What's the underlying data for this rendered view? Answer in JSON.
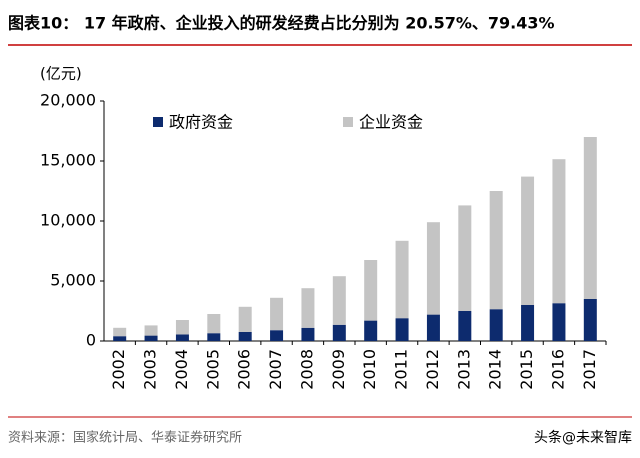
{
  "chart_data": {
    "type": "stacked_bar",
    "title": "图表10：   17 年政府、企业投入的研发经费占比分别为 20.57%、79.43%",
    "y_label": "(亿元)",
    "categories": [
      "2002",
      "2003",
      "2004",
      "2005",
      "2006",
      "2007",
      "2008",
      "2009",
      "2010",
      "2011",
      "2012",
      "2013",
      "2014",
      "2015",
      "2016",
      "2017"
    ],
    "series": [
      {
        "name": "政府资金",
        "color": "#0d2b6e",
        "values": [
          400,
          450,
          550,
          650,
          750,
          900,
          1100,
          1350,
          1700,
          1900,
          2200,
          2500,
          2650,
          3000,
          3150,
          3500
        ]
      },
      {
        "name": "企业资金",
        "color": "#c4c4c4",
        "values": [
          700,
          850,
          1200,
          1600,
          2100,
          2700,
          3300,
          4050,
          5050,
          6450,
          7700,
          8800,
          9850,
          10700,
          12000,
          13500
        ]
      }
    ],
    "ylim": [
      0,
      20000
    ],
    "yticks": [
      0,
      {
        "value": 5000,
        "label": "5,000"
      },
      {
        "value": 10000,
        "label": "10,000"
      },
      {
        "value": 15000,
        "label": "15,000"
      },
      {
        "value": 20000,
        "label": "20,000"
      }
    ],
    "grid": false
  },
  "source": "资料来源：国家统计局、华泰证券研究所",
  "watermark": "头条@未来智库"
}
